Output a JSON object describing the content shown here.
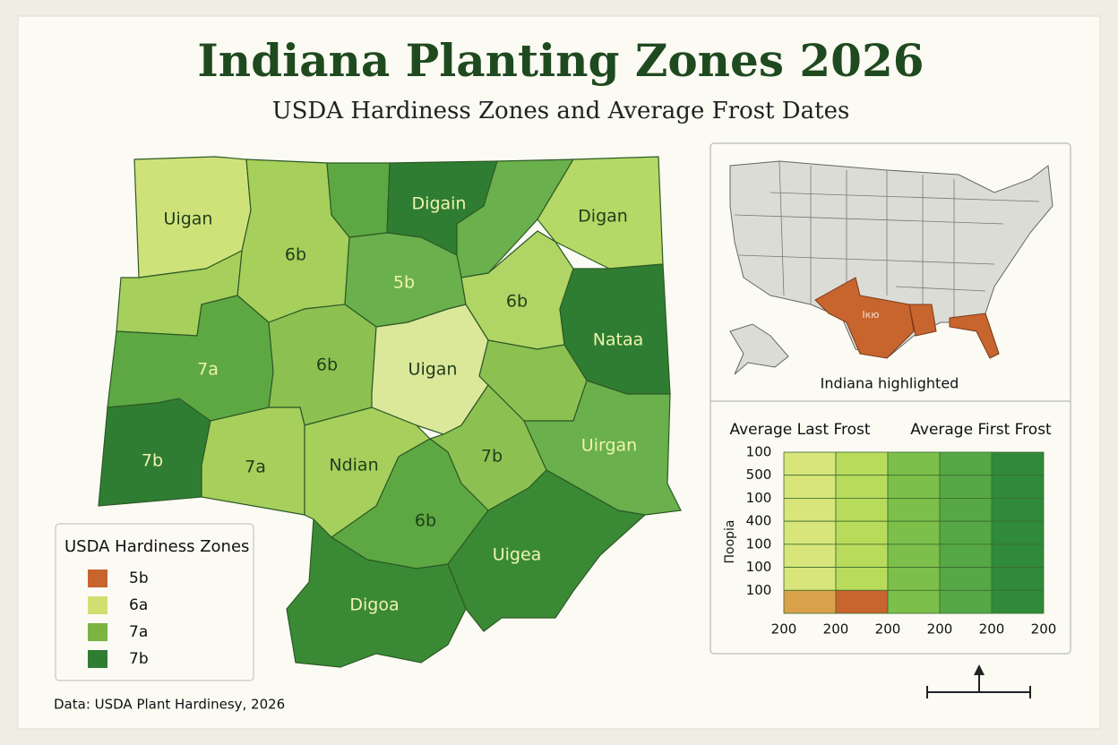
{
  "title": "Indiana Planting Zones 2026",
  "subtitle": "USDA Hardiness Zones and Average Frost Dates",
  "map": {
    "regions": [
      {
        "label": "Uigan"
      },
      {
        "label": "6b"
      },
      {
        "label": "Digain"
      },
      {
        "label": "Digan"
      },
      {
        "label": "5b"
      },
      {
        "label": "6b"
      },
      {
        "label": "Nataa"
      },
      {
        "label": "7a"
      },
      {
        "label": "6b"
      },
      {
        "label": "Uigan"
      },
      {
        "label": "7b"
      },
      {
        "label": "7a"
      },
      {
        "label": "Ndian"
      },
      {
        "label": "7b"
      },
      {
        "label": "Uirgan"
      },
      {
        "label": "6b"
      },
      {
        "label": "Uigea"
      },
      {
        "label": "Digoa"
      }
    ]
  },
  "legend": {
    "title": "USDA Hardiness Zones",
    "items": [
      {
        "label": "5b",
        "color": "#c8642e"
      },
      {
        "label": "6a",
        "color": "#cfe070"
      },
      {
        "label": "7a",
        "color": "#7cb342"
      },
      {
        "label": "7b",
        "color": "#2e7d32"
      }
    ]
  },
  "inset": {
    "state_label": "Iкю",
    "caption": "Indiana highlighted"
  },
  "frost_chart": {
    "headers": [
      "Average Last Frost",
      "Average First Frost"
    ],
    "y_axis_label": "Пoopia",
    "y_labels": [
      100,
      500,
      100,
      400,
      100,
      100,
      100
    ],
    "x_labels": [
      200,
      200,
      200,
      200,
      200,
      200
    ],
    "cell_colors": [
      [
        "#d7e57a",
        "#b9db5c",
        "#7cbf4a",
        "#55a845",
        "#2f8a3a"
      ],
      [
        "#d7e57a",
        "#b9db5c",
        "#7cbf4a",
        "#55a845",
        "#2f8a3a"
      ],
      [
        "#d7e57a",
        "#b9db5c",
        "#7cbf4a",
        "#55a845",
        "#2f8a3a"
      ],
      [
        "#d7e57a",
        "#b9db5c",
        "#7cbf4a",
        "#55a845",
        "#2f8a3a"
      ],
      [
        "#d7e57a",
        "#b9db5c",
        "#7cbf4a",
        "#55a845",
        "#2f8a3a"
      ],
      [
        "#d7e57a",
        "#b9db5c",
        "#7cbf4a",
        "#55a845",
        "#2f8a3a"
      ],
      [
        "#d9a24a",
        "#c8642e",
        "#7cbf4a",
        "#55a845",
        "#2f8a3a"
      ]
    ]
  },
  "footer": "Data: USDA Plant Hardinesy, 2026"
}
